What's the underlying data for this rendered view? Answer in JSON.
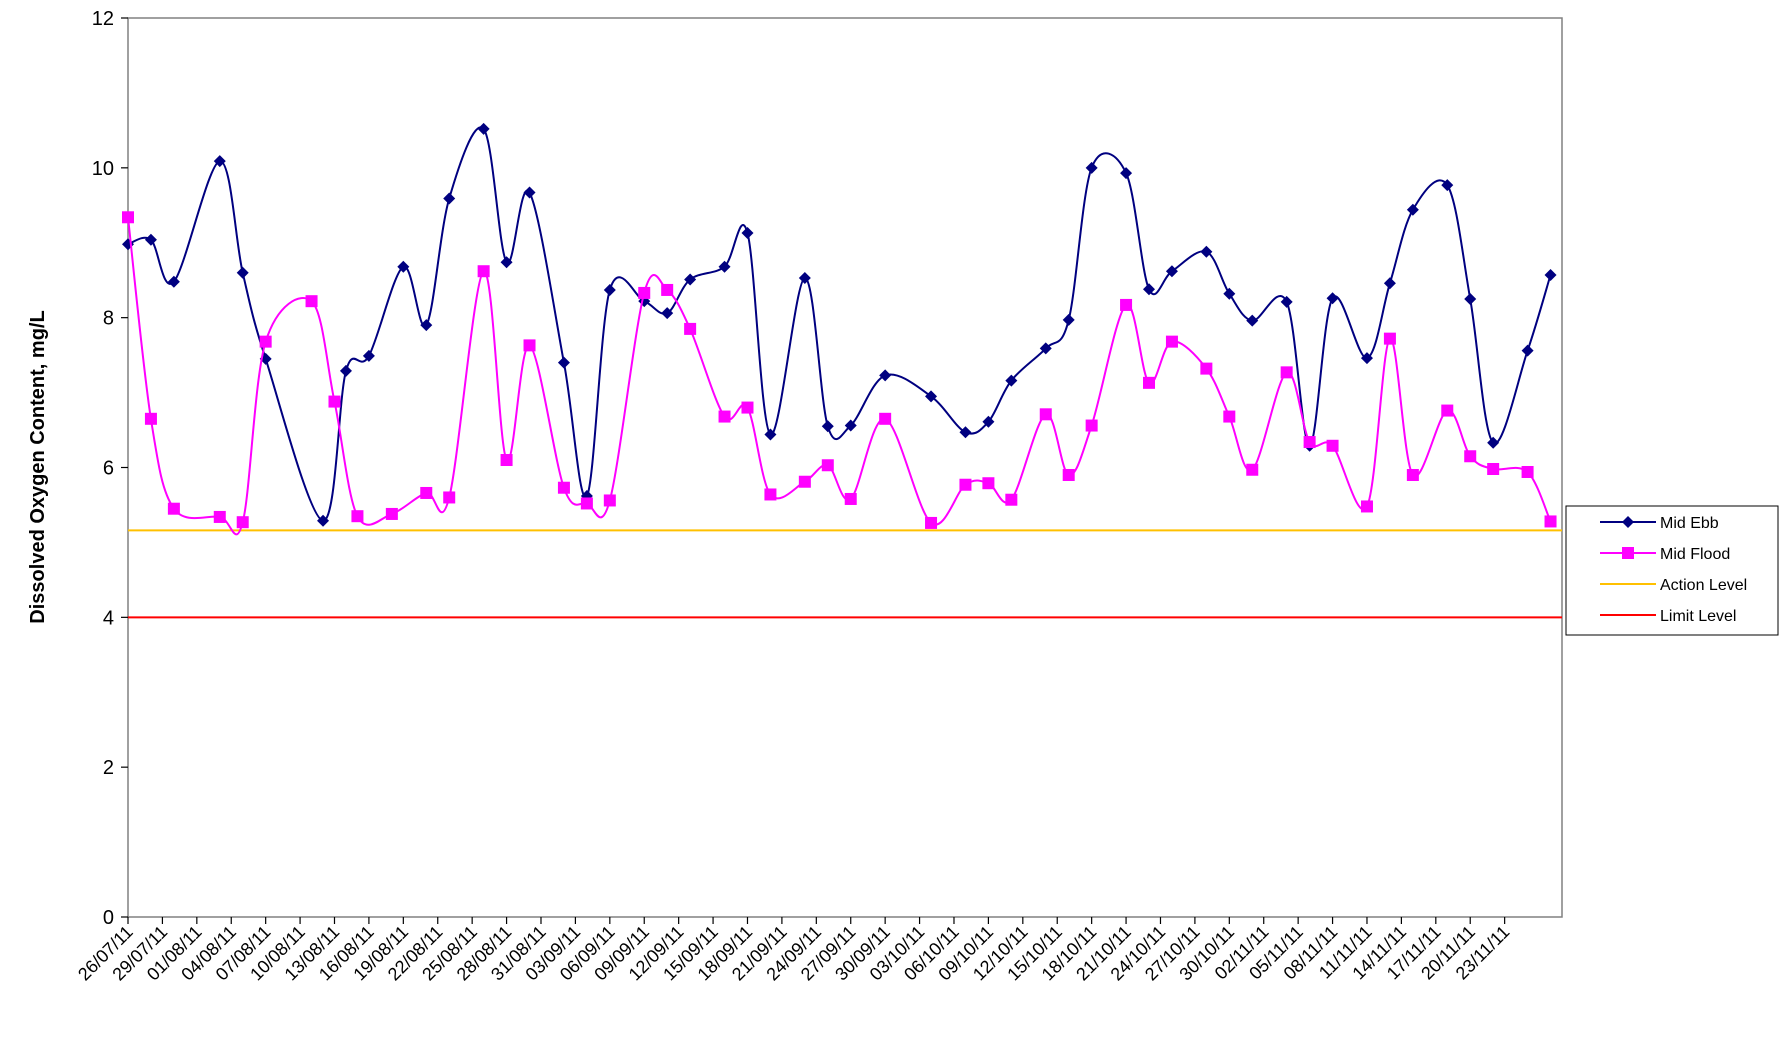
{
  "chart_data": {
    "type": "line",
    "ylabel": "Dissolved Oxygen Content, mg/L",
    "xlabel": "",
    "ylim": [
      0,
      12
    ],
    "yticks": [
      0,
      2,
      4,
      6,
      8,
      10,
      12
    ],
    "grid": false,
    "legend_placement": "right",
    "x_tick_labels": [
      "26/07/11",
      "29/07/11",
      "01/08/11",
      "04/08/11",
      "07/08/11",
      "10/08/11",
      "13/08/11",
      "16/08/11",
      "19/08/11",
      "22/08/11",
      "25/08/11",
      "28/08/11",
      "31/08/11",
      "03/09/11",
      "06/09/11",
      "09/09/11",
      "12/09/11",
      "15/09/11",
      "18/09/11",
      "21/09/11",
      "24/09/11",
      "27/09/11",
      "30/09/11",
      "03/10/11",
      "06/10/11",
      "09/10/11",
      "12/10/11",
      "15/10/11",
      "18/10/11",
      "21/10/11",
      "24/10/11",
      "27/10/11",
      "30/10/11",
      "02/11/11",
      "05/11/11",
      "08/11/11",
      "11/11/11",
      "14/11/11",
      "17/11/11",
      "20/11/11",
      "23/11/11"
    ],
    "x_range": [
      "26/07/11",
      "28/11/11"
    ],
    "series": [
      {
        "name": "Mid Ebb",
        "color": "#000080",
        "marker": "diamond",
        "points": [
          [
            "26/07/11",
            8.98
          ],
          [
            "28/07/11",
            9.04
          ],
          [
            "30/07/11",
            8.48
          ],
          [
            "03/08/11",
            10.09
          ],
          [
            "05/08/11",
            8.6
          ],
          [
            "07/08/11",
            7.45
          ],
          [
            "12/08/11",
            5.29
          ],
          [
            "14/08/11",
            7.29
          ],
          [
            "16/08/11",
            7.49
          ],
          [
            "19/08/11",
            8.68
          ],
          [
            "21/08/11",
            7.9
          ],
          [
            "23/08/11",
            9.59
          ],
          [
            "26/08/11",
            10.52
          ],
          [
            "28/08/11",
            8.74
          ],
          [
            "30/08/11",
            9.67
          ],
          [
            "02/09/11",
            7.4
          ],
          [
            "04/09/11",
            5.62
          ],
          [
            "06/09/11",
            8.37
          ],
          [
            "09/09/11",
            8.22
          ],
          [
            "11/09/11",
            8.06
          ],
          [
            "13/09/11",
            8.51
          ],
          [
            "16/09/11",
            8.68
          ],
          [
            "18/09/11",
            9.13
          ],
          [
            "20/09/11",
            6.44
          ],
          [
            "23/09/11",
            8.53
          ],
          [
            "25/09/11",
            6.55
          ],
          [
            "27/09/11",
            6.56
          ],
          [
            "30/09/11",
            7.23
          ],
          [
            "04/10/11",
            6.95
          ],
          [
            "07/10/11",
            6.47
          ],
          [
            "09/10/11",
            6.61
          ],
          [
            "11/10/11",
            7.16
          ],
          [
            "14/10/11",
            7.59
          ],
          [
            "16/10/11",
            7.97
          ],
          [
            "18/10/11",
            10.0
          ],
          [
            "21/10/11",
            9.93
          ],
          [
            "23/10/11",
            8.38
          ],
          [
            "25/10/11",
            8.62
          ],
          [
            "28/10/11",
            8.88
          ],
          [
            "30/10/11",
            8.32
          ],
          [
            "01/11/11",
            7.96
          ],
          [
            "04/11/11",
            8.21
          ],
          [
            "06/11/11",
            6.29
          ],
          [
            "08/11/11",
            8.26
          ],
          [
            "11/11/11",
            7.46
          ],
          [
            "13/11/11",
            8.46
          ],
          [
            "15/11/11",
            9.44
          ],
          [
            "18/11/11",
            9.77
          ],
          [
            "20/11/11",
            8.25
          ],
          [
            "22/11/11",
            6.33
          ],
          [
            "25/11/11",
            7.56
          ],
          [
            "27/11/11",
            8.57
          ]
        ]
      },
      {
        "name": "Mid Flood",
        "color": "#ff00ff",
        "marker": "square",
        "points": [
          [
            "26/07/11",
            9.34
          ],
          [
            "28/07/11",
            6.65
          ],
          [
            "30/07/11",
            5.45
          ],
          [
            "03/08/11",
            5.34
          ],
          [
            "05/08/11",
            5.27
          ],
          [
            "07/08/11",
            7.68
          ],
          [
            "11/08/11",
            8.22
          ],
          [
            "13/08/11",
            6.88
          ],
          [
            "15/08/11",
            5.35
          ],
          [
            "18/08/11",
            5.38
          ],
          [
            "21/08/11",
            5.66
          ],
          [
            "23/08/11",
            5.6
          ],
          [
            "26/08/11",
            8.62
          ],
          [
            "28/08/11",
            6.1
          ],
          [
            "30/08/11",
            7.63
          ],
          [
            "02/09/11",
            5.73
          ],
          [
            "04/09/11",
            5.52
          ],
          [
            "06/09/11",
            5.56
          ],
          [
            "09/09/11",
            8.33
          ],
          [
            "11/09/11",
            8.37
          ],
          [
            "13/09/11",
            7.85
          ],
          [
            "16/09/11",
            6.68
          ],
          [
            "18/09/11",
            6.8
          ],
          [
            "20/09/11",
            5.64
          ],
          [
            "23/09/11",
            5.81
          ],
          [
            "25/09/11",
            6.03
          ],
          [
            "27/09/11",
            5.58
          ],
          [
            "30/09/11",
            6.65
          ],
          [
            "04/10/11",
            5.26
          ],
          [
            "07/10/11",
            5.77
          ],
          [
            "09/10/11",
            5.79
          ],
          [
            "11/10/11",
            5.57
          ],
          [
            "14/10/11",
            6.71
          ],
          [
            "16/10/11",
            5.9
          ],
          [
            "18/10/11",
            6.56
          ],
          [
            "21/10/11",
            8.17
          ],
          [
            "23/10/11",
            7.13
          ],
          [
            "25/10/11",
            7.68
          ],
          [
            "28/10/11",
            7.32
          ],
          [
            "30/10/11",
            6.68
          ],
          [
            "01/11/11",
            5.97
          ],
          [
            "04/11/11",
            7.27
          ],
          [
            "06/11/11",
            6.34
          ],
          [
            "08/11/11",
            6.29
          ],
          [
            "11/11/11",
            5.48
          ],
          [
            "13/11/11",
            7.72
          ],
          [
            "15/11/11",
            5.9
          ],
          [
            "18/11/11",
            6.76
          ],
          [
            "20/11/11",
            6.15
          ],
          [
            "22/11/11",
            5.98
          ],
          [
            "25/11/11",
            5.94
          ],
          [
            "27/11/11",
            5.28
          ]
        ]
      },
      {
        "name": "Action Level",
        "color": "#ffc000",
        "marker": "none",
        "value": 5.16
      },
      {
        "name": "Limit Level",
        "color": "#ff0000",
        "marker": "none",
        "value": 4.0
      }
    ]
  }
}
